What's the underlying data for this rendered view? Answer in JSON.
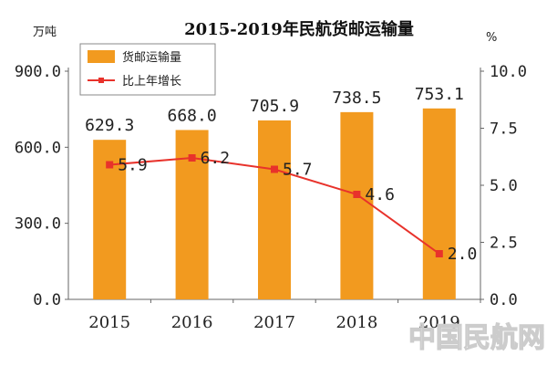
{
  "chart_data": {
    "type": "bar",
    "title": "2015-2019年民航货邮运输量",
    "y_unit_left": "万吨",
    "y_unit_right": "%",
    "categories": [
      "2015",
      "2016",
      "2017",
      "2018",
      "2019"
    ],
    "ylim_left": [
      0,
      900
    ],
    "ylim_right": [
      0,
      10
    ],
    "yticks_left": [
      "0.0",
      "300.0",
      "600.0",
      "900.0"
    ],
    "yticks_right": [
      "0.0",
      "2.5",
      "5.0",
      "7.5",
      "10.0"
    ],
    "series": [
      {
        "name": "货邮运输量",
        "type": "bar",
        "axis": "left",
        "color": "#F29A1F",
        "values": [
          629.3,
          668.0,
          705.9,
          738.5,
          753.1
        ],
        "labels": [
          "629.3",
          "668.0",
          "705.9",
          "738.5",
          "753.1"
        ]
      },
      {
        "name": "比上年增长",
        "type": "line",
        "axis": "right",
        "color": "#E8322B",
        "values": [
          5.9,
          6.2,
          5.7,
          4.6,
          2.0
        ],
        "labels": [
          "5.9",
          "6.2",
          "5.7",
          "4.6",
          "2.0"
        ]
      }
    ],
    "legend_position": "top-left",
    "grid": false
  },
  "watermark": "中国民航网"
}
